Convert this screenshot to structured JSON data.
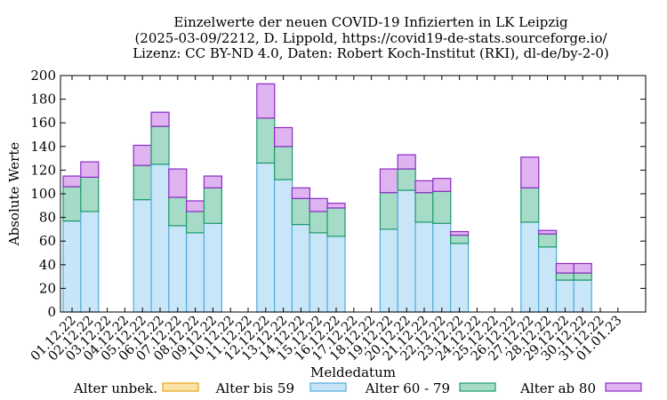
{
  "chart_data": {
    "type": "bar",
    "stacked": true,
    "title_lines": [
      "Einzelwerte der neuen COVID-19 Infizierten in LK Leipzig",
      "(2025-03-09/2212, D. Lippold, https://covid19-de-stats.sourceforge.io/",
      "Lizenz: CC BY-ND 4.0, Daten: Robert Koch-Institut (RKI), dl-de/by-2-0)"
    ],
    "xlabel": "Meldedatum",
    "ylabel": "Absolute Werte",
    "ylim": [
      0,
      200
    ],
    "yticks": [
      0,
      20,
      40,
      60,
      80,
      100,
      120,
      140,
      160,
      180,
      200
    ],
    "categories": [
      "01.12.22",
      "02.12.22",
      "03.12.22",
      "04.12.22",
      "05.12.22",
      "06.12.22",
      "07.12.22",
      "08.12.22",
      "09.12.22",
      "10.12.22",
      "11.12.22",
      "12.12.22",
      "13.12.22",
      "14.12.22",
      "15.12.22",
      "16.12.22",
      "17.12.22",
      "18.12.22",
      "19.12.22",
      "20.12.22",
      "21.12.22",
      "22.12.22",
      "23.12.22",
      "24.12.22",
      "25.12.22",
      "26.12.22",
      "27.12.22",
      "28.12.22",
      "29.12.22",
      "30.12.22",
      "31.12.22",
      "01.01.23"
    ],
    "series": [
      {
        "name": "Alter unbek.",
        "fill": "#fbe3a8",
        "stroke": "#e6a41a",
        "values": [
          0,
          0,
          0,
          0,
          0,
          0,
          0,
          0,
          0,
          0,
          0,
          0,
          0,
          0,
          0,
          0,
          0,
          0,
          0,
          0,
          0,
          0,
          0,
          0,
          0,
          0,
          0,
          0,
          0,
          0,
          0,
          0
        ]
      },
      {
        "name": "Alter bis 59",
        "fill": "#c8e6f8",
        "stroke": "#4fa9dc",
        "values": [
          77,
          85,
          0,
          0,
          95,
          125,
          73,
          67,
          75,
          0,
          0,
          126,
          112,
          74,
          67,
          64,
          0,
          0,
          70,
          103,
          76,
          75,
          58,
          0,
          0,
          0,
          76,
          55,
          27,
          27,
          0,
          0
        ]
      },
      {
        "name": "Alter 60 - 79",
        "fill": "#a6dcc7",
        "stroke": "#1a9a6a",
        "values": [
          29,
          29,
          0,
          0,
          29,
          32,
          24,
          18,
          30,
          0,
          0,
          38,
          28,
          22,
          18,
          24,
          0,
          0,
          31,
          18,
          25,
          27,
          7,
          0,
          0,
          0,
          29,
          11,
          6,
          6,
          0,
          0
        ]
      },
      {
        "name": "Alter ab 80",
        "fill": "#dfb2f0",
        "stroke": "#8a2bc4",
        "values": [
          9,
          13,
          0,
          0,
          17,
          12,
          24,
          9,
          10,
          0,
          0,
          29,
          16,
          9,
          11,
          4,
          0,
          0,
          20,
          12,
          10,
          11,
          3,
          0,
          0,
          0,
          26,
          3,
          8,
          8,
          0,
          0
        ]
      }
    ],
    "legend_position": "bottom",
    "grid": false
  }
}
